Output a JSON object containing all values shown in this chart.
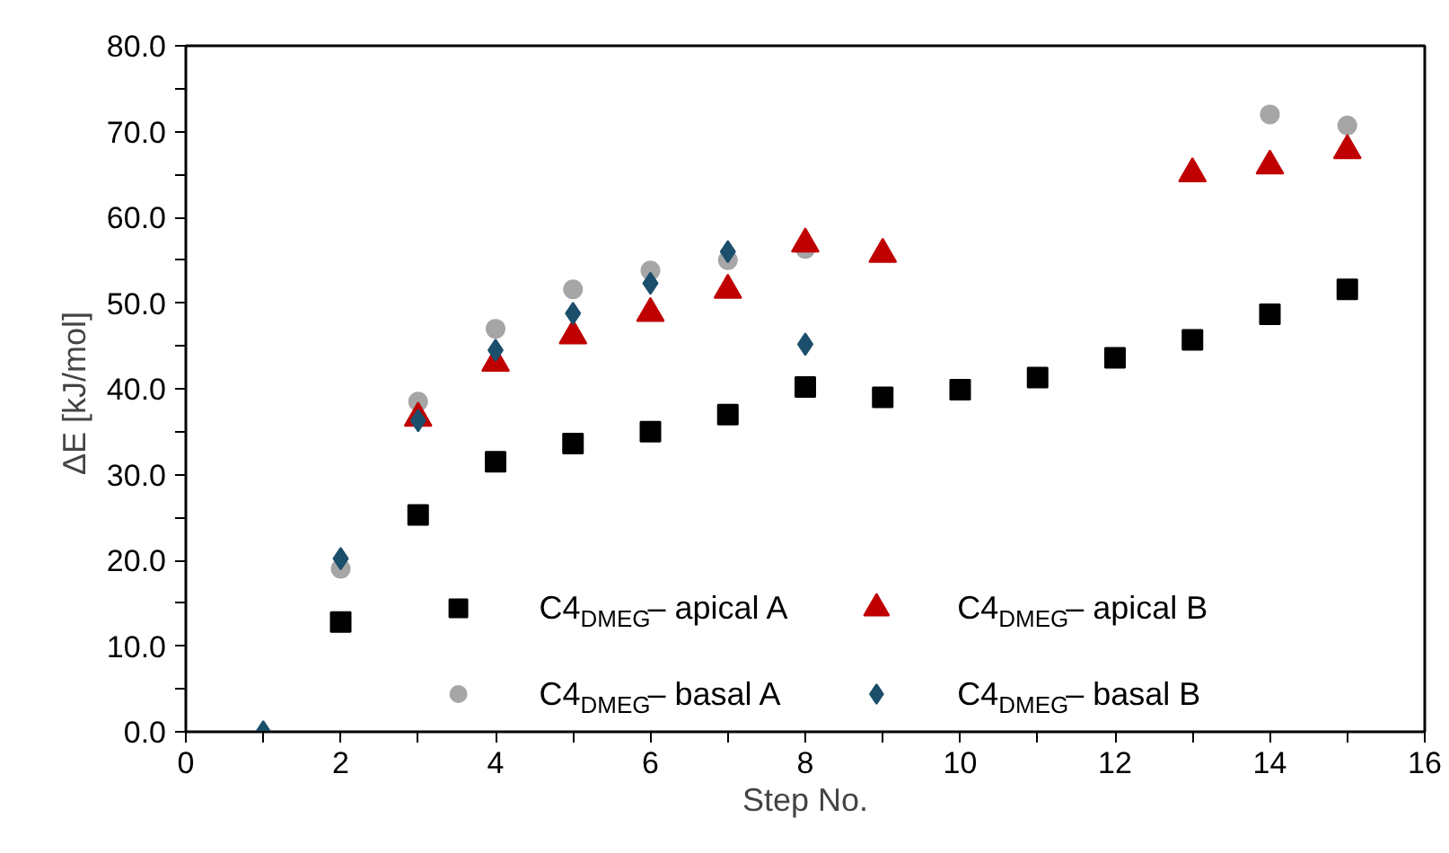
{
  "chart_data": {
    "type": "scatter",
    "xlabel": "Step No.",
    "ylabel": "ΔE  [kJ/mol]",
    "xlim": [
      0,
      16
    ],
    "ylim": [
      0,
      80
    ],
    "xticks": [
      0,
      {
        "value": 1,
        "label": null
      },
      2,
      {
        "value": 3,
        "label": null
      },
      4,
      {
        "value": 5,
        "label": null
      },
      6,
      {
        "value": 7,
        "label": null
      },
      8,
      {
        "value": 9,
        "label": null
      },
      10,
      {
        "value": 11,
        "label": null
      },
      12,
      {
        "value": 13,
        "label": null
      },
      14,
      {
        "value": 15,
        "label": null
      },
      16
    ],
    "yticks": [
      {
        "value": 0,
        "label": "0.0"
      },
      {
        "value": 5,
        "label": null
      },
      {
        "value": 10,
        "label": "10.0"
      },
      {
        "value": 15,
        "label": null
      },
      {
        "value": 20,
        "label": "20.0"
      },
      {
        "value": 25,
        "label": null
      },
      {
        "value": 30,
        "label": "30.0"
      },
      {
        "value": 35,
        "label": null
      },
      {
        "value": 40,
        "label": "40.0"
      },
      {
        "value": 45,
        "label": null
      },
      {
        "value": 50,
        "label": "50.0"
      },
      {
        "value": 55,
        "label": null
      },
      {
        "value": 60,
        "label": "60.0"
      },
      {
        "value": 65,
        "label": null
      },
      {
        "value": 70,
        "label": "70.0"
      },
      {
        "value": 75,
        "label": null
      },
      {
        "value": 80,
        "label": "80.0"
      }
    ],
    "grid": false,
    "legend": "bottom",
    "series": [
      {
        "name": "C4$_{DMEG}$– apical A",
        "color": "#000000",
        "marker": "square",
        "x": [
          2,
          3,
          4,
          5,
          6,
          7,
          8,
          9,
          10,
          11,
          12,
          13,
          14,
          15
        ],
        "values": [
          12.8,
          25.3,
          31.5,
          33.6,
          35.0,
          37.0,
          40.2,
          39.0,
          39.9,
          41.3,
          43.6,
          45.7,
          48.7,
          51.6
        ]
      },
      {
        "name": "C4$_{DMEG}$– apical B",
        "color": "#c00000",
        "marker": "triangle",
        "x": [
          3,
          4,
          5,
          6,
          7,
          8,
          9,
          13,
          14,
          15
        ],
        "values": [
          36.6,
          43.0,
          46.2,
          48.8,
          51.5,
          56.9,
          55.7,
          65.1,
          66.0,
          67.8
        ]
      },
      {
        "name": "C4$_{DMEG}$– basal A",
        "color": "#a6a6a6",
        "marker": "circle",
        "x": [
          2,
          3,
          4,
          5,
          6,
          7,
          8,
          14,
          15
        ],
        "values": [
          19.0,
          38.5,
          47.0,
          51.6,
          53.8,
          55.0,
          56.3,
          72.0,
          70.7
        ]
      },
      {
        "name": "C4$_{DMEG}$– basal B",
        "color": "#1b4f6b",
        "marker": "diamond",
        "x": [
          1,
          2,
          3,
          4,
          5,
          6,
          7,
          8
        ],
        "values": [
          0,
          20.2,
          36.3,
          44.5,
          48.8,
          52.3,
          56.0,
          45.2
        ]
      }
    ]
  }
}
